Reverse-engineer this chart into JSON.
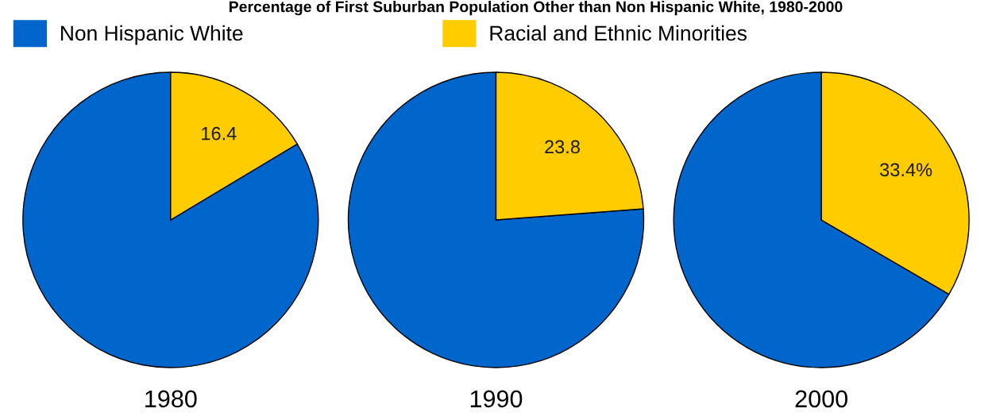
{
  "chart_data": [
    {
      "type": "pie",
      "title": "Percentage of First Suburban Population Other than Non Hispanic White, 1980-2000",
      "xlabel": "1980",
      "categories": [
        "Non Hispanic White",
        "Racial and Ethnic Minorities"
      ],
      "values": [
        83.6,
        16.4
      ],
      "colors": [
        "#0066cc",
        "#ffcc00"
      ],
      "value_labels": [
        null,
        "16.4"
      ],
      "legend": "top"
    },
    {
      "type": "pie",
      "xlabel": "1990",
      "categories": [
        null,
        null
      ],
      "values": [
        76.2,
        23.8
      ],
      "colors": [
        "#0066cc",
        "#ffcc00"
      ],
      "value_labels": [
        null,
        "23.8"
      ]
    },
    {
      "type": "pie",
      "xlabel": "2000",
      "categories": [
        null,
        null
      ],
      "values": [
        66.6,
        33.4
      ],
      "colors": [
        "#0066cc",
        "#ffcc00"
      ],
      "value_labels": [
        null,
        "33.4%"
      ]
    }
  ]
}
